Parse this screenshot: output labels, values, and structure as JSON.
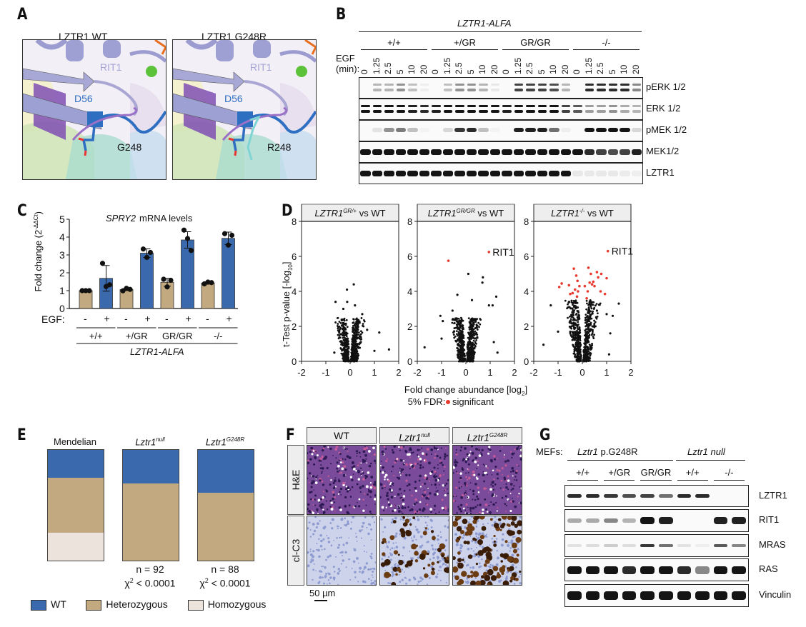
{
  "panels": {
    "A": {
      "label": "A",
      "left_title": "LZTR1 WT",
      "right_title": "LZTR1 G248R",
      "structure_labels": {
        "rit1": "RIT1",
        "d56": "D56",
        "g248": "G248",
        "r248": "R248"
      }
    },
    "B": {
      "label": "B",
      "header": "LZTR1-ALFA",
      "genotypes": [
        "+/+",
        "+/GR",
        "GR/GR",
        "-/-"
      ],
      "egf_label_1": "EGF",
      "egf_label_2": "(min):",
      "timepoints": [
        "0",
        "1.25",
        "2.5",
        "5",
        "10",
        "20"
      ],
      "rows": [
        "pERK 1/2",
        "ERK 1/2",
        "pMEK 1/2",
        "MEK1/2",
        "LZTR1"
      ]
    },
    "C": {
      "label": "C"
    },
    "D": {
      "label": "D"
    },
    "E": {
      "label": "E",
      "columns": [
        {
          "title": "Mendelian",
          "title_sup": "",
          "n": "",
          "chi": "",
          "wt": 25,
          "het": 50,
          "hom": 25
        },
        {
          "title": "Lztr1",
          "title_sup": "null",
          "n": "n = 92",
          "chi": "< 0.0001",
          "wt": 30,
          "het": 70,
          "hom": 0
        },
        {
          "title": "Lztr1",
          "title_sup": "G248R",
          "n": "n = 88",
          "chi": "< 0.0001",
          "wt": 38.5,
          "het": 61.5,
          "hom": 0
        }
      ],
      "chi_symbol": "χ",
      "chi_sup": "2",
      "legend": [
        {
          "label": "WT",
          "color": "#3a6aad"
        },
        {
          "label": "Heterozygous",
          "color": "#c2a97f"
        },
        {
          "label": "Homozygous",
          "color": "#ebe3dc"
        }
      ]
    },
    "F": {
      "label": "F",
      "columns": [
        {
          "title": "WT",
          "sup": ""
        },
        {
          "title": "Lztr1",
          "sup": "null"
        },
        {
          "title": "Lztr1",
          "sup": "G248R"
        }
      ],
      "rows": [
        "H&E",
        "cl-C3"
      ],
      "scalebar": "50 µm"
    },
    "G": {
      "label": "G",
      "mefs": "MEFs:",
      "group1_it": "Lztr1",
      "group1_rest": " p.G248R",
      "group2": "Lztr1 null",
      "genotypes": [
        "+/+",
        "+/GR",
        "GR/GR",
        "+/+",
        "-/-"
      ],
      "rows": [
        "LZTR1",
        "RIT1",
        "MRAS",
        "RAS",
        "Vinculin"
      ]
    }
  },
  "chart_data": [
    {
      "id": "C",
      "type": "bar",
      "title_italic": "SPRY2",
      "title_rest": " mRNA levels",
      "ylabel": "Fold change (2",
      "ylabel_sup": "-ΔΔCt",
      "ylabel_close": ")",
      "ylim": [
        0,
        5
      ],
      "yticks": [
        "0",
        "1",
        "2",
        "3",
        "4",
        "5"
      ],
      "egf_label": "EGF:",
      "egf": [
        "-",
        "+",
        "-",
        "+",
        "-",
        "+",
        "-",
        "+"
      ],
      "groups": [
        "+/+",
        "+/GR",
        "GR/GR",
        "-/-"
      ],
      "group_header": "LZTR1-ALFA",
      "colors": {
        "minus": "#c2a97f",
        "plus": "#3a6aad"
      },
      "values": [
        1.0,
        1.69,
        1.06,
        3.1,
        1.47,
        3.84,
        1.43,
        3.93
      ],
      "errors": [
        0.02,
        0.72,
        0.06,
        0.24,
        0.22,
        0.46,
        0.06,
        0.35
      ],
      "points": [
        [
          1.0,
          1.0,
          1.0
        ],
        [
          2.53,
          1.23,
          1.33
        ],
        [
          0.99,
          1.13,
          1.07
        ],
        [
          3.33,
          2.86,
          3.14
        ],
        [
          1.64,
          1.21,
          1.58
        ],
        [
          4.39,
          3.92,
          3.25
        ],
        [
          1.38,
          1.48,
          1.45
        ],
        [
          4.19,
          3.55,
          4.1
        ]
      ]
    },
    {
      "id": "D",
      "type": "scatter",
      "ylabel": "t-Test p-value [-log",
      "ylabel_sub": "10",
      "ylabel_close": "]",
      "xlabel": "Fold change abundance [log",
      "xlabel_sub": "2",
      "xlabel_close": "]",
      "legend_prefix": "5% FDR:",
      "legend_label": "significant",
      "sig_color": "#e8392f",
      "xlim": [
        -2,
        2
      ],
      "ylim": [
        0,
        8
      ],
      "xticks": [
        "-2",
        "-1",
        "0",
        "1",
        "2"
      ],
      "yticks": [
        "0",
        "2",
        "4",
        "6",
        "8"
      ],
      "panels": [
        {
          "title": "LZTR1",
          "sup": "GR/+",
          "suffix": " vs WT",
          "annotation": "",
          "spread": 0.9,
          "outliers": [
            [
              0.15,
              4.4
            ],
            [
              -0.13,
              4.1
            ],
            [
              -0.12,
              3.4
            ],
            [
              0.2,
              3.2
            ],
            [
              -0.6,
              3.4
            ],
            [
              -0.28,
              3.0
            ],
            [
              0.5,
              2.7
            ],
            [
              1.2,
              1.65
            ],
            [
              1.6,
              0.68
            ],
            [
              1.0,
              0.6
            ],
            [
              -0.65,
              0.5
            ],
            [
              0.7,
              1.8
            ]
          ],
          "significant": []
        },
        {
          "title": "LZTR1",
          "sup": "GR/GR",
          "suffix": " vs WT",
          "annotation": "RIT1",
          "spread": 1.0,
          "outliers": [
            [
              0.1,
              5.0
            ],
            [
              0.7,
              4.8
            ],
            [
              0.68,
              4.5
            ],
            [
              -0.35,
              3.8
            ],
            [
              1.25,
              3.7
            ],
            [
              0.25,
              3.5
            ],
            [
              -1.05,
              2.6
            ],
            [
              -0.95,
              2.3
            ],
            [
              -1.7,
              0.8
            ],
            [
              -1.0,
              1.3
            ],
            [
              1.1,
              3.2
            ],
            [
              0.95,
              3.2
            ],
            [
              1.15,
              1.1
            ],
            [
              1.3,
              0.5
            ],
            [
              -0.55,
              2.9
            ]
          ],
          "significant": [
            [
              0.95,
              6.25
            ],
            [
              -0.72,
              5.75
            ]
          ]
        },
        {
          "title": "LZTR1",
          "sup": "-/-",
          "suffix": " vs WT",
          "annotation": "RIT1",
          "spread": 1.3,
          "outliers": [
            [
              -1.3,
              3.2
            ],
            [
              1.5,
              3.3
            ],
            [
              -1.6,
              0.95
            ],
            [
              1.25,
              2.6
            ],
            [
              1.1,
              0.4
            ],
            [
              -1.0,
              1.7
            ],
            [
              1.0,
              2.7
            ],
            [
              -0.55,
              3.4
            ],
            [
              0.6,
              2.9
            ],
            [
              1.15,
              1.6
            ]
          ],
          "significant": [
            [
              1.05,
              6.3
            ],
            [
              -0.35,
              5.3
            ],
            [
              0.25,
              5.35
            ],
            [
              0.6,
              5.1
            ],
            [
              0.78,
              5.0
            ],
            [
              1.0,
              4.75
            ],
            [
              -0.95,
              4.25
            ],
            [
              -0.85,
              4.45
            ],
            [
              -0.55,
              4.35
            ],
            [
              -0.25,
              4.9
            ],
            [
              -0.2,
              4.6
            ],
            [
              0.3,
              4.5
            ],
            [
              0.4,
              4.4
            ],
            [
              0.65,
              4.8
            ],
            [
              0.35,
              5.0
            ],
            [
              -0.4,
              3.9
            ],
            [
              -0.5,
              3.85
            ],
            [
              -0.3,
              4.1
            ],
            [
              -0.18,
              4.0
            ],
            [
              0.22,
              4.0
            ],
            [
              0.5,
              4.3
            ],
            [
              0.75,
              4.0
            ],
            [
              0.93,
              3.85
            ],
            [
              -0.22,
              3.7
            ],
            [
              0.18,
              3.6
            ],
            [
              -0.12,
              4.3
            ],
            [
              0.1,
              4.3
            ],
            [
              0.45,
              4.55
            ]
          ]
        }
      ]
    }
  ]
}
